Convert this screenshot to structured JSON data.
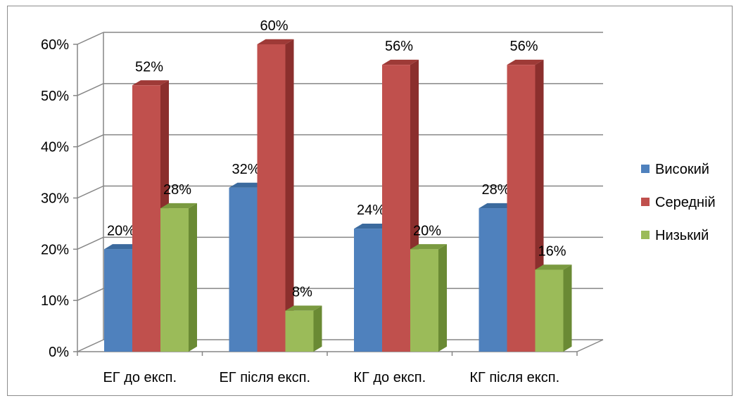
{
  "chart_data": {
    "type": "bar",
    "categories": [
      "ЕГ до експ.",
      "ЕГ після експ.",
      "КГ  до експ.",
      "КГ після експ."
    ],
    "series": [
      {
        "name": "Високий",
        "values": [
          20,
          32,
          24,
          28
        ],
        "color": "#4f81bd",
        "side": "#385d8a",
        "top": "#3b6a9e"
      },
      {
        "name": "Середній",
        "values": [
          52,
          60,
          56,
          56
        ],
        "color": "#c0504d",
        "side": "#8b2f2d",
        "top": "#9e3a37"
      },
      {
        "name": "Низький",
        "values": [
          28,
          8,
          20,
          16
        ],
        "color": "#9bbb59",
        "side": "#6a8a34",
        "top": "#7a9a40"
      }
    ],
    "y_ticks": [
      "0%",
      "10%",
      "20%",
      "30%",
      "40%",
      "50%",
      "60%"
    ],
    "ylim": [
      0,
      60
    ],
    "value_suffix": "%",
    "grid": true,
    "legend_position": "right",
    "title": "",
    "xlabel": "",
    "ylabel": ""
  }
}
